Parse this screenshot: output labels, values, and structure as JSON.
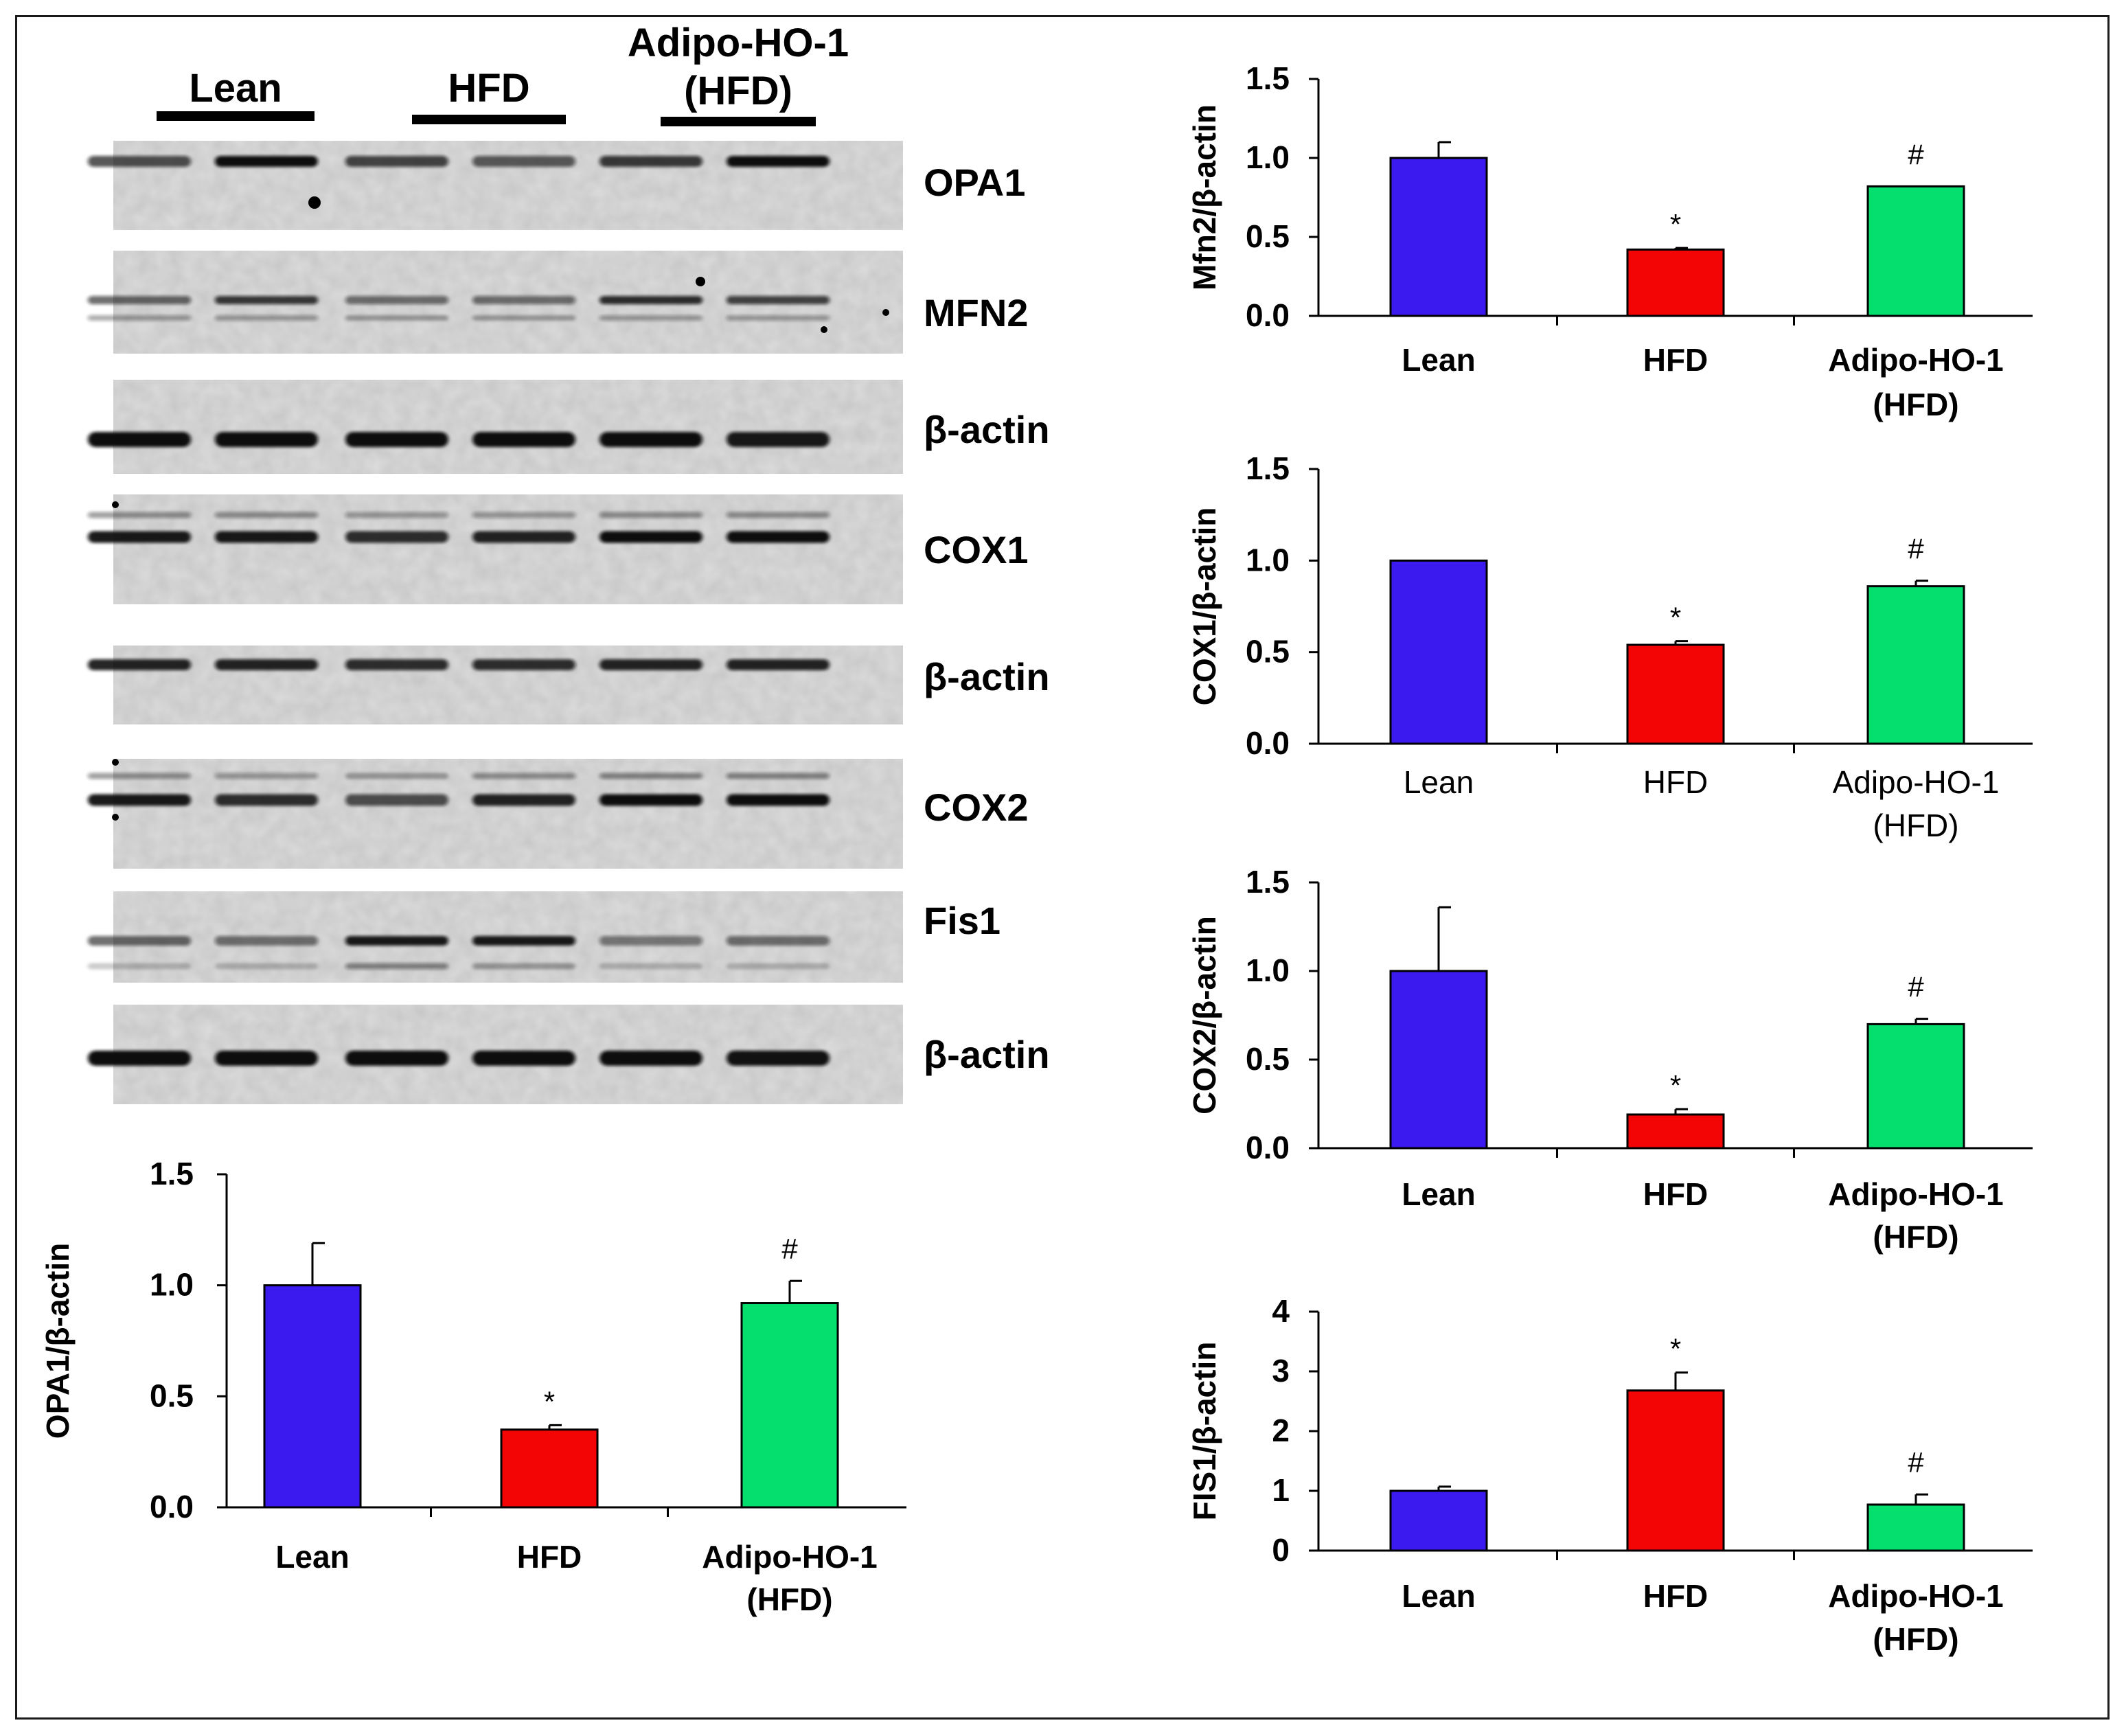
{
  "blot": {
    "groups": [
      {
        "name": "lean",
        "label": [
          "Lean"
        ]
      },
      {
        "name": "hfd",
        "label": [
          "HFD"
        ]
      },
      {
        "name": "adipo",
        "label": [
          "Adipo-HO-1",
          "(HFD)"
        ]
      }
    ],
    "bands": [
      "OPA1",
      "MFN2",
      "β-actin",
      "COX1",
      "β-actin",
      "COX2",
      "Fis1",
      "β-actin"
    ]
  },
  "colors": {
    "lean": "#3a1aef",
    "hfd": "#f40505",
    "adipo": "#05df6e",
    "axis": "#000000"
  },
  "chart_data": [
    {
      "id": "opa1",
      "type": "bar",
      "categories": [
        [
          "Lean"
        ],
        [
          "HFD"
        ],
        [
          "Adipo-HO-1",
          "(HFD)"
        ]
      ],
      "values": [
        1.0,
        0.35,
        0.92
      ],
      "errors": [
        0.19,
        0.02,
        0.1
      ],
      "annotations": [
        "",
        "*",
        "#"
      ],
      "ylabel": "OPA1/β-actin",
      "ylim": [
        0,
        1.5
      ],
      "yticks": [
        "0.0",
        "0.5",
        "1.0",
        "1.5"
      ],
      "tick_values": [
        0,
        0.5,
        1.0,
        1.5
      ],
      "bold_labels": true
    },
    {
      "id": "mfn2",
      "type": "bar",
      "categories": [
        [
          "Lean"
        ],
        [
          "HFD"
        ],
        [
          "Adipo-HO-1",
          "(HFD)"
        ]
      ],
      "values": [
        1.0,
        0.42,
        0.82
      ],
      "errors": [
        0.1,
        0.01,
        0.0
      ],
      "annotations": [
        "",
        "*",
        "#"
      ],
      "ylabel": "Mfn2/β-actin",
      "ylim": [
        0,
        1.5
      ],
      "yticks": [
        "0.0",
        "0.5",
        "1.0",
        "1.5"
      ],
      "tick_values": [
        0,
        0.5,
        1.0,
        1.5
      ],
      "bold_labels": true
    },
    {
      "id": "cox1",
      "type": "bar",
      "categories": [
        [
          "Lean"
        ],
        [
          "HFD"
        ],
        [
          "Adipo-HO-1",
          "(HFD)"
        ]
      ],
      "values": [
        1.0,
        0.54,
        0.86
      ],
      "errors": [
        0.0,
        0.02,
        0.03
      ],
      "annotations": [
        "",
        "*",
        "#"
      ],
      "ylabel": "COX1/β-actin",
      "ylim": [
        0,
        1.5
      ],
      "yticks": [
        "0.0",
        "0.5",
        "1.0",
        "1.5"
      ],
      "tick_values": [
        0,
        0.5,
        1.0,
        1.5
      ],
      "bold_labels": false
    },
    {
      "id": "cox2",
      "type": "bar",
      "categories": [
        [
          "Lean"
        ],
        [
          "HFD"
        ],
        [
          "Adipo-HO-1",
          "(HFD)"
        ]
      ],
      "values": [
        1.0,
        0.19,
        0.7
      ],
      "errors": [
        0.36,
        0.03,
        0.03
      ],
      "annotations": [
        "",
        "*",
        "#"
      ],
      "ylabel": "COX2/β-actin",
      "ylim": [
        0,
        1.5
      ],
      "yticks": [
        "0.0",
        "0.5",
        "1.0",
        "1.5"
      ],
      "tick_values": [
        0,
        0.5,
        1.0,
        1.5
      ],
      "bold_labels": true
    },
    {
      "id": "fis1",
      "type": "bar",
      "categories": [
        [
          "Lean"
        ],
        [
          "HFD"
        ],
        [
          "Adipo-HO-1",
          "(HFD)"
        ]
      ],
      "values": [
        1.0,
        2.68,
        0.77
      ],
      "errors": [
        0.07,
        0.3,
        0.17
      ],
      "annotations": [
        "",
        "*",
        "#"
      ],
      "ylabel": "FIS1/β-actin",
      "ylim": [
        0,
        4
      ],
      "yticks": [
        "0",
        "1",
        "2",
        "3",
        "4"
      ],
      "tick_values": [
        0,
        1,
        2,
        3,
        4
      ],
      "bold_labels": true
    }
  ]
}
